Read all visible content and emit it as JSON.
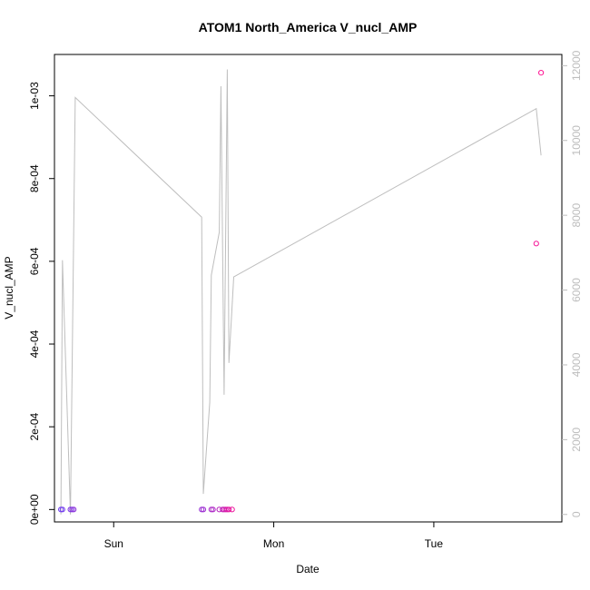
{
  "chart_data": {
    "type": "scatter",
    "title": "ATOM1 North_America V_nucl_AMP",
    "xlabel": "Date",
    "ylabel": "V_nucl_AMP",
    "x_ticks": [
      "Sun",
      "Mon",
      "Tue"
    ],
    "y_ticks": [
      "0e+00",
      "2e-04",
      "4e-04",
      "6e-04",
      "8e-04",
      "1e-03"
    ],
    "y_right_ticks": [
      "0",
      "2000",
      "4000",
      "6000",
      "8000",
      "10000",
      "12000"
    ],
    "xlim": [
      -0.37,
      2.8
    ],
    "ylim": [
      -3e-05,
      0.0011
    ],
    "y_right_lim": [
      -200,
      12300
    ],
    "grid": false,
    "series": [
      {
        "type": "scatter",
        "marker": "open-circle",
        "color_start": "#6a3cf0",
        "color_end": "#ff1493",
        "points": [
          {
            "x": -0.33,
            "y": 0.0
          },
          {
            "x": -0.32,
            "y": 0.0
          },
          {
            "x": -0.27,
            "y": 0.0
          },
          {
            "x": -0.26,
            "y": 0.0
          },
          {
            "x": -0.25,
            "y": 0.0
          },
          {
            "x": 0.55,
            "y": 0.0
          },
          {
            "x": 0.56,
            "y": 0.0
          },
          {
            "x": 0.61,
            "y": 0.0
          },
          {
            "x": 0.62,
            "y": 0.0
          },
          {
            "x": 0.66,
            "y": 0.0
          },
          {
            "x": 0.68,
            "y": 0.0
          },
          {
            "x": 0.69,
            "y": 0.0
          },
          {
            "x": 0.7,
            "y": 0.0
          },
          {
            "x": 0.71,
            "y": 0.0
          },
          {
            "x": 0.72,
            "y": 0.0
          },
          {
            "x": 0.74,
            "y": 0.0
          },
          {
            "x": 2.64,
            "y": 0.000643
          },
          {
            "x": 2.67,
            "y": 0.001056
          }
        ]
      },
      {
        "type": "line",
        "axis": "right",
        "color": "#bebebe",
        "points": [
          {
            "x": -0.33,
            "y": 0
          },
          {
            "x": -0.32,
            "y": 6800
          },
          {
            "x": -0.27,
            "y": 0
          },
          {
            "x": -0.24,
            "y": 11150
          },
          {
            "x": 0.55,
            "y": 7950
          },
          {
            "x": 0.56,
            "y": 550
          },
          {
            "x": 0.6,
            "y": 3000
          },
          {
            "x": 0.61,
            "y": 6400
          },
          {
            "x": 0.66,
            "y": 7550
          },
          {
            "x": 0.67,
            "y": 11450
          },
          {
            "x": 0.69,
            "y": 3200
          },
          {
            "x": 0.71,
            "y": 11900
          },
          {
            "x": 0.72,
            "y": 4050
          },
          {
            "x": 0.75,
            "y": 6350
          },
          {
            "x": 2.64,
            "y": 10850
          },
          {
            "x": 2.67,
            "y": 9600
          }
        ]
      }
    ]
  }
}
